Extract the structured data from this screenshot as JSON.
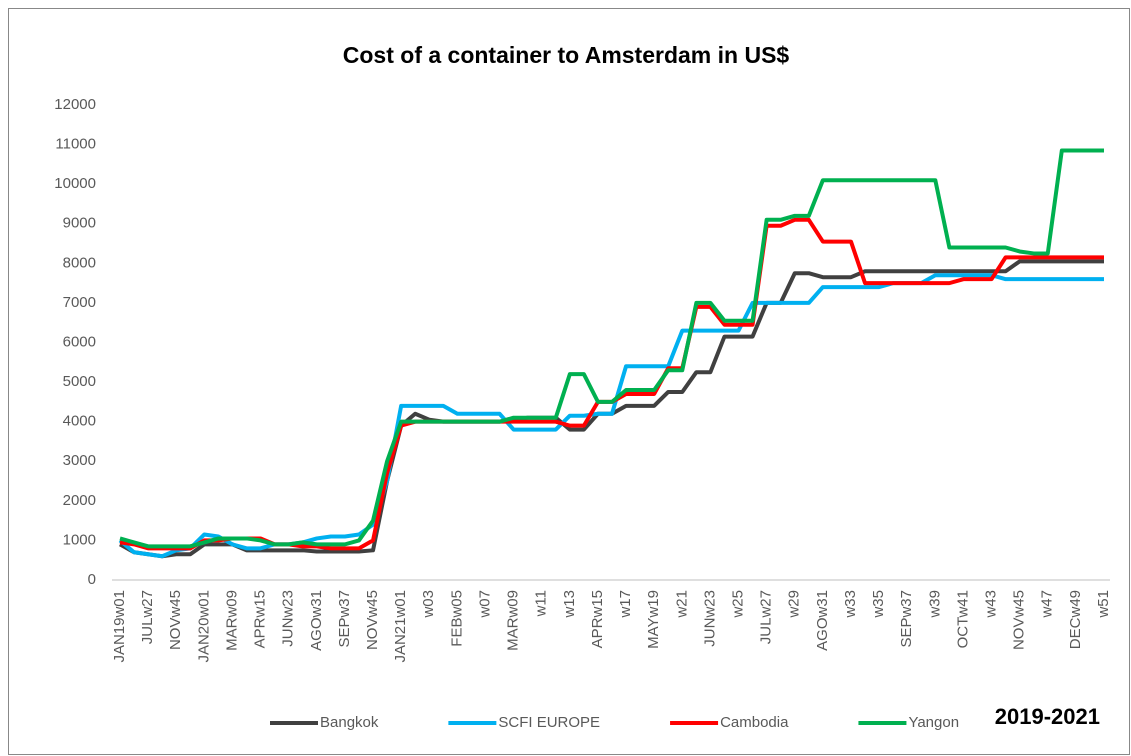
{
  "chart_data": {
    "type": "line",
    "title": "Cost of a container to Amsterdam in US$",
    "annotation": "2019-2021",
    "categories": [
      "JAN19w01",
      null,
      "JULw27",
      null,
      "NOVw45",
      null,
      "JAN20w01",
      null,
      "MARw09",
      null,
      "APRw15",
      null,
      "JUNw23",
      null,
      "AGOw31",
      null,
      "SEPw37",
      null,
      "NOVw45",
      null,
      "JAN21w01",
      null,
      "w03",
      null,
      "FEBw05",
      null,
      "w07",
      null,
      "MARw09",
      null,
      "w11",
      null,
      "w13",
      null,
      "APRw15",
      null,
      "w17",
      null,
      "MAYw19",
      null,
      "w21",
      null,
      "JUNw23",
      null,
      "w25",
      null,
      "JULw27",
      null,
      "w29",
      null,
      "AGOw31",
      null,
      "w33",
      null,
      "w35",
      null,
      "SEPw37",
      null,
      "w39",
      null,
      "OCTw41",
      null,
      "w43",
      null,
      "NOVw45",
      null,
      "w47",
      null,
      "DECw49",
      null,
      "w51"
    ],
    "series": [
      {
        "name": "Bangkok",
        "color": "#404040",
        "values": [
          900,
          700,
          650,
          600,
          650,
          650,
          900,
          900,
          900,
          750,
          750,
          750,
          750,
          750,
          720,
          720,
          720,
          720,
          750,
          2500,
          3900,
          4200,
          4050,
          4000,
          4000,
          4000,
          4000,
          4000,
          4050,
          4100,
          4100,
          4100,
          3800,
          3800,
          4200,
          4200,
          4400,
          4400,
          4400,
          4750,
          4750,
          5250,
          5250,
          6150,
          6150,
          6150,
          7000,
          7000,
          7750,
          7750,
          7650,
          7650,
          7650,
          7800,
          7800,
          7800,
          7800,
          7800,
          7800,
          7800,
          7800,
          7800,
          7800,
          7800,
          8050,
          8050,
          8050,
          8050,
          8050,
          8050,
          8050
        ]
      },
      {
        "name": "SCFI EUROPE",
        "color": "#00b0f0",
        "values": [
          1000,
          700,
          650,
          600,
          750,
          800,
          1150,
          1100,
          900,
          800,
          800,
          900,
          900,
          950,
          1050,
          1100,
          1100,
          1150,
          1400,
          2500,
          4400,
          4400,
          4400,
          4400,
          4200,
          4200,
          4200,
          4200,
          3800,
          3800,
          3800,
          3800,
          4150,
          4150,
          4200,
          4200,
          5400,
          5400,
          5400,
          5400,
          6300,
          6300,
          6300,
          6300,
          6300,
          7000,
          7000,
          7000,
          7000,
          7000,
          7400,
          7400,
          7400,
          7400,
          7400,
          7500,
          7500,
          7500,
          7700,
          7700,
          7700,
          7700,
          7700,
          7600,
          7600,
          7600,
          7600,
          7600,
          7600,
          7600,
          7600
        ]
      },
      {
        "name": "Cambodia",
        "color": "#ff0000",
        "values": [
          950,
          900,
          800,
          800,
          800,
          800,
          1000,
          1000,
          1050,
          1050,
          1050,
          900,
          900,
          850,
          850,
          800,
          800,
          800,
          1000,
          2700,
          3900,
          4000,
          4000,
          4000,
          4000,
          4000,
          4000,
          4000,
          4000,
          4000,
          4000,
          4000,
          3900,
          3900,
          4500,
          4500,
          4700,
          4700,
          4700,
          5350,
          5350,
          6900,
          6900,
          6450,
          6450,
          6450,
          8950,
          8950,
          9100,
          9100,
          8550,
          8550,
          8550,
          7500,
          7500,
          7500,
          7500,
          7500,
          7500,
          7500,
          7600,
          7600,
          7600,
          8150,
          8150,
          8150,
          8150,
          8150,
          8150,
          8150,
          8150
        ]
      },
      {
        "name": "Yangon",
        "color": "#00b050",
        "values": [
          1050,
          950,
          850,
          850,
          850,
          850,
          950,
          1050,
          1050,
          1050,
          1000,
          900,
          900,
          950,
          900,
          900,
          900,
          1000,
          1500,
          3000,
          4000,
          4000,
          4000,
          4000,
          4000,
          4000,
          4000,
          4000,
          4100,
          4100,
          4100,
          4100,
          5200,
          5200,
          4500,
          4500,
          4800,
          4800,
          4800,
          5300,
          5300,
          7000,
          7000,
          6550,
          6550,
          6550,
          9100,
          9100,
          9200,
          9200,
          10100,
          10100,
          10100,
          10100,
          10100,
          10100,
          10100,
          10100,
          10100,
          8400,
          8400,
          8400,
          8400,
          8400,
          8300,
          8250,
          8250,
          10850,
          10850,
          10850,
          10850
        ]
      }
    ],
    "ylim": [
      0,
      12000
    ],
    "yticks": [
      0,
      1000,
      2000,
      3000,
      4000,
      5000,
      6000,
      7000,
      8000,
      9000,
      10000,
      11000,
      12000
    ],
    "grid": false,
    "legend": "bottom"
  }
}
